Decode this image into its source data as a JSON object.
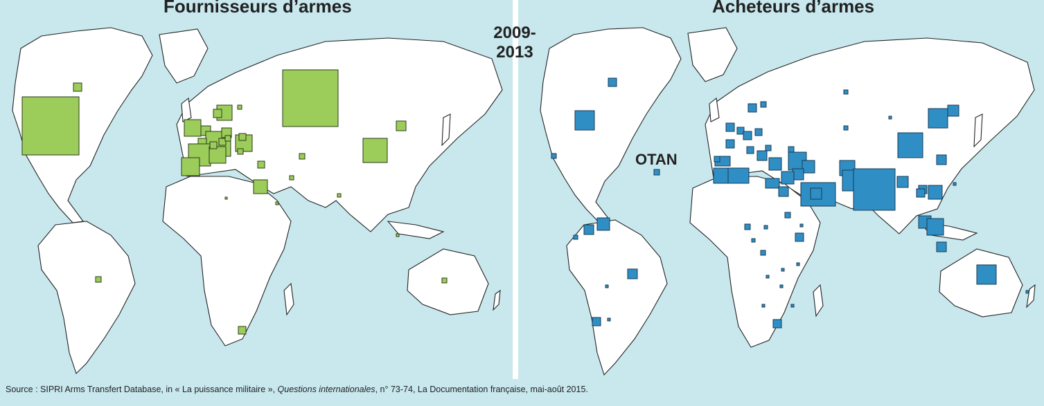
{
  "title_left": "Fournisseurs d’armes",
  "title_right": "Acheteurs d’armes",
  "period_top": "2009-",
  "period_bottom": "2013",
  "otan_label": "OTAN",
  "source": {
    "prefix": "Source : SIPRI Arms Transfert Database, in « La puissance militaire », ",
    "journal": "Questions internationales",
    "suffix": ", n° 73-74, La Documentation française, mai-août 2015."
  },
  "colors": {
    "sea": "#c8e8ee",
    "suppliers": "#9ccc5a",
    "buyers": "#2f8fc4"
  }
}
